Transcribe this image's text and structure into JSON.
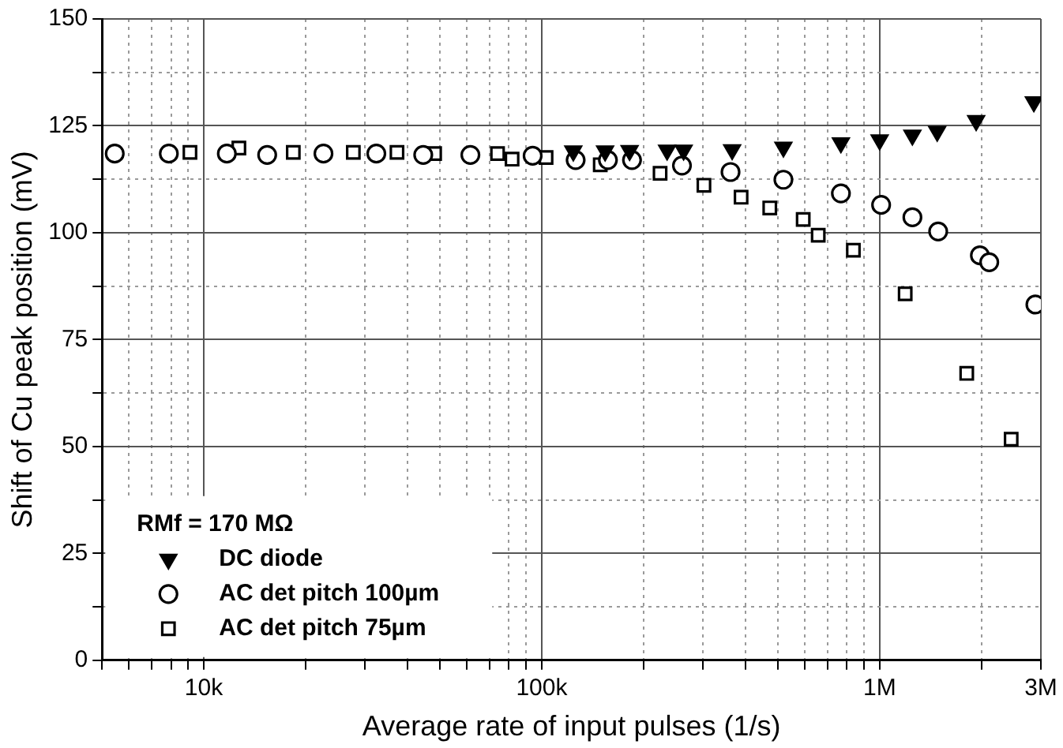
{
  "chart_data": {
    "type": "scatter",
    "xlabel": "Average rate of input pulses (1/s)",
    "ylabel": "Shift of Cu peak position (mV)",
    "legend_title": "RMf = 170 MΩ",
    "log": "x",
    "grid": true,
    "legend": "bottom left",
    "xlim": [
      5000,
      3000000
    ],
    "ylim": [
      0,
      150
    ],
    "xticks": [
      {
        "value": 5000,
        "label": null
      },
      {
        "value": 6000,
        "label": null
      },
      {
        "value": 7000,
        "label": null
      },
      {
        "value": 8000,
        "label": null
      },
      {
        "value": 9000,
        "label": null
      },
      {
        "value": 10000,
        "label": "10k"
      },
      {
        "value": 20000,
        "label": null
      },
      {
        "value": 30000,
        "label": null
      },
      {
        "value": 40000,
        "label": null
      },
      {
        "value": 50000,
        "label": null
      },
      {
        "value": 60000,
        "label": null
      },
      {
        "value": 70000,
        "label": null
      },
      {
        "value": 80000,
        "label": null
      },
      {
        "value": 90000,
        "label": null
      },
      {
        "value": 100000,
        "label": "100k"
      },
      {
        "value": 200000,
        "label": null
      },
      {
        "value": 300000,
        "label": null
      },
      {
        "value": 400000,
        "label": null
      },
      {
        "value": 500000,
        "label": null
      },
      {
        "value": 600000,
        "label": null
      },
      {
        "value": 700000,
        "label": null
      },
      {
        "value": 800000,
        "label": null
      },
      {
        "value": 900000,
        "label": null
      },
      {
        "value": 1000000,
        "label": "1M"
      },
      {
        "value": 2000000,
        "label": null
      },
      {
        "value": 3000000,
        "label": "3M"
      }
    ],
    "yticks": [
      0,
      {
        "value": 12.5,
        "label": null
      },
      25,
      {
        "value": 37.5,
        "label": null
      },
      50,
      {
        "value": 62.5,
        "label": null
      },
      75,
      {
        "value": 87.5,
        "label": null
      },
      100,
      {
        "value": 112.5,
        "label": null
      },
      125,
      {
        "value": 137.5,
        "label": null
      },
      150
    ],
    "series": [
      {
        "name": "DC diode",
        "color": "#000000",
        "marker": "triangle",
        "x": [
          124000,
          154000,
          182000,
          235000,
          263000,
          366000,
          519000,
          768000,
          1000000,
          1250000,
          1480000,
          1930000,
          2860000
        ],
        "values": [
          119.1,
          119.1,
          119.2,
          119.3,
          119.3,
          119.4,
          120,
          121,
          121.7,
          122.8,
          123.7,
          126.2,
          130.6
        ]
      },
      {
        "name": "AC det pitch 100µm",
        "color": "#000000",
        "marker": "circle",
        "x": [
          5450,
          7880,
          11700,
          15400,
          22600,
          32400,
          44600,
          61500,
          94000,
          126000,
          157000,
          185000,
          260000,
          362000,
          519000,
          768000,
          1010000,
          1250000,
          1490000,
          1980000,
          2110000,
          2890000
        ],
        "values": [
          118.5,
          118.5,
          118.5,
          118.2,
          118.5,
          118.5,
          118.2,
          118.2,
          118,
          117,
          117,
          117,
          115.7,
          114.2,
          112.4,
          109.2,
          106.5,
          103.6,
          100.3,
          94.7,
          93.1,
          83.2
        ]
      },
      {
        "name": "AC det pitch 75µm",
        "color": "#000000",
        "marker": "square",
        "x": [
          9100,
          12700,
          18400,
          27700,
          37300,
          48200,
          74000,
          81700,
          103000,
          149000,
          224000,
          302000,
          389000,
          473000,
          594000,
          658000,
          836000,
          1190000,
          1810000,
          2450000
        ],
        "values": [
          118.8,
          119.8,
          118.8,
          118.8,
          118.8,
          118.5,
          118.5,
          117.2,
          117.6,
          115.9,
          113.9,
          111.1,
          108.3,
          105.8,
          103.1,
          99.4,
          95.9,
          85.7,
          67.1,
          51.7
        ]
      }
    ]
  }
}
